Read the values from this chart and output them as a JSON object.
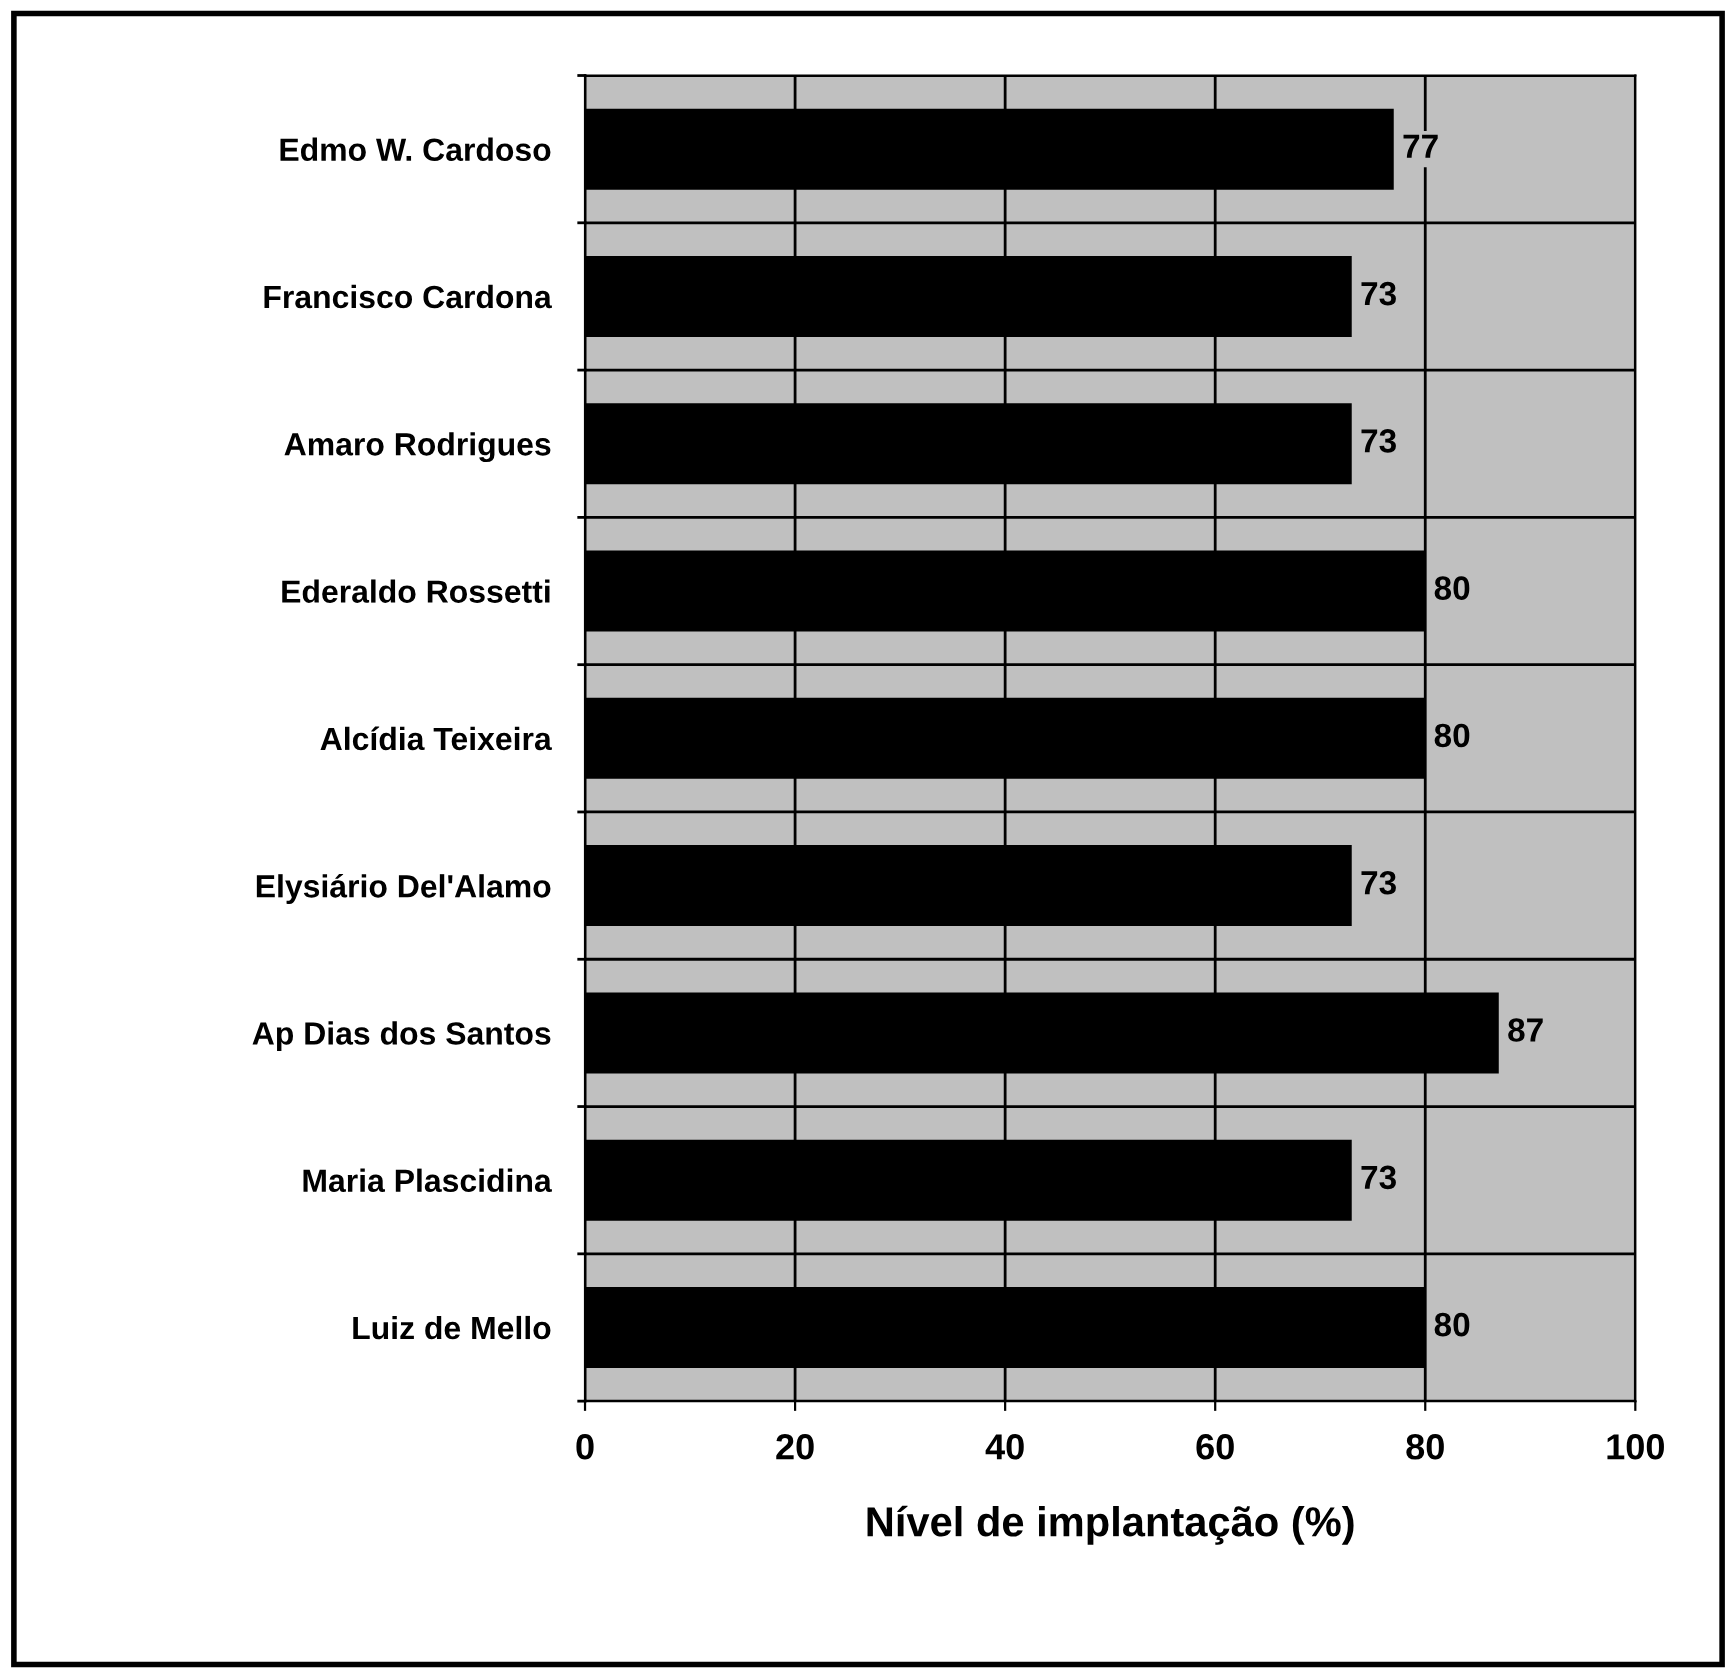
{
  "chart_data": {
    "type": "bar",
    "orientation": "horizontal",
    "categories": [
      "Edmo W. Cardoso",
      "Francisco Cardona",
      "Amaro Rodrigues",
      "Ederaldo Rossetti",
      "Alcídia Teixeira",
      "Elysiário Del'Alamo",
      "Ap Dias dos Santos",
      "Maria Plascidina",
      "Luiz de Mello"
    ],
    "values": [
      77,
      73,
      73,
      80,
      80,
      73,
      87,
      73,
      80
    ],
    "color": "#000000",
    "xlabel": "Nível de implantação (%)",
    "xlim": [
      0,
      100
    ],
    "xticks": [
      0,
      20,
      40,
      60,
      80,
      100
    ],
    "grid": true,
    "data_labels": true,
    "legend": false
  }
}
